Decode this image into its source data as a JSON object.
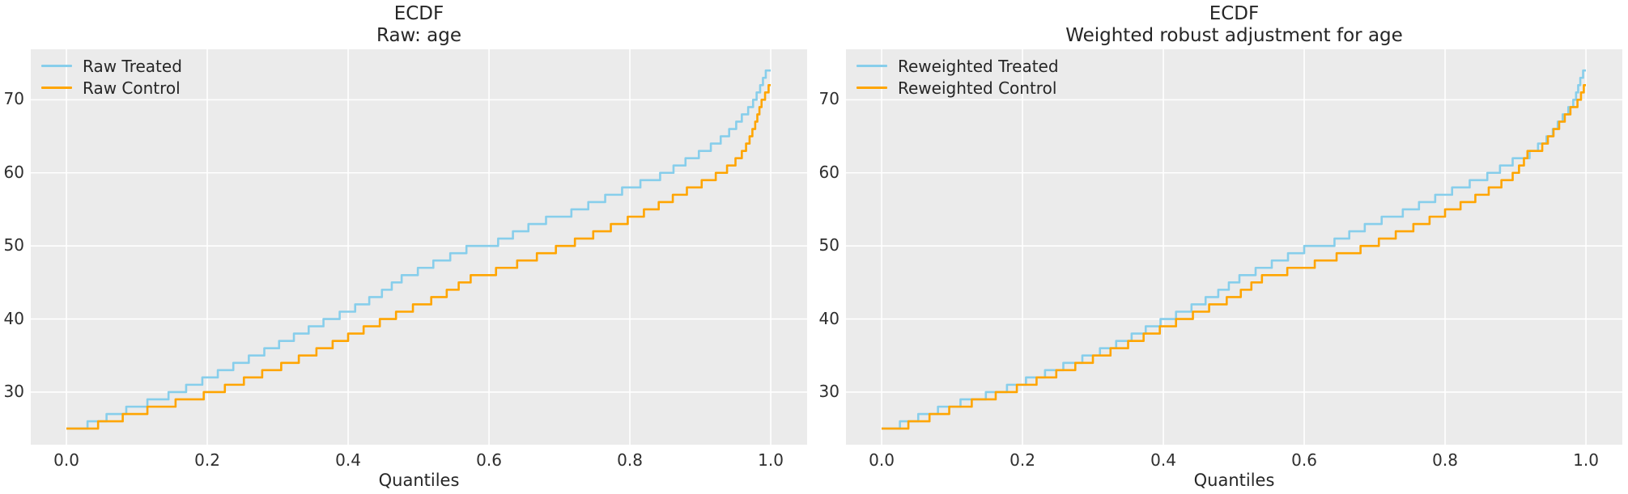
{
  "figure": {
    "background": "#ffffff",
    "plot_background": "#ebebeb",
    "grid_color": "#ffffff",
    "text_color": "#262626"
  },
  "chart_data": [
    {
      "type": "line",
      "subtype": "ecdf-step",
      "title_lines": [
        "ECDF",
        "Raw: age"
      ],
      "xlabel": "Quantiles",
      "legend_position": "upper-left",
      "axes": {
        "xlim": [
          -0.0506,
          1.0517
        ],
        "ylim": [
          22.8,
          76.9
        ],
        "x_tick_values": [
          0.0,
          0.2,
          0.4,
          0.6,
          0.8,
          1.0
        ],
        "x_tick_labels": [
          "0.0",
          "0.2",
          "0.4",
          "0.6",
          "0.8",
          "1.0"
        ],
        "y_tick_values": [
          30,
          40,
          50,
          60,
          70
        ],
        "y_tick_labels": [
          "30",
          "40",
          "50",
          "60",
          "70"
        ],
        "grid": true
      },
      "series": [
        {
          "name": "Raw Treated",
          "color": "#87CEEB",
          "start": [
            0.0,
            25
          ],
          "end_q": 1.0,
          "steps": [
            [
              0.03,
              26
            ],
            [
              0.057,
              27
            ],
            [
              0.085,
              28
            ],
            [
              0.115,
              29
            ],
            [
              0.145,
              30
            ],
            [
              0.17,
              31
            ],
            [
              0.193,
              32
            ],
            [
              0.215,
              33
            ],
            [
              0.237,
              34
            ],
            [
              0.259,
              35
            ],
            [
              0.281,
              36
            ],
            [
              0.302,
              37
            ],
            [
              0.323,
              38
            ],
            [
              0.344,
              39
            ],
            [
              0.365,
              40
            ],
            [
              0.388,
              41
            ],
            [
              0.41,
              42
            ],
            [
              0.43,
              43
            ],
            [
              0.448,
              44
            ],
            [
              0.462,
              45
            ],
            [
              0.476,
              46
            ],
            [
              0.499,
              47
            ],
            [
              0.521,
              48
            ],
            [
              0.545,
              49
            ],
            [
              0.568,
              50
            ],
            [
              0.613,
              51
            ],
            [
              0.634,
              52
            ],
            [
              0.656,
              53
            ],
            [
              0.681,
              54
            ],
            [
              0.717,
              55
            ],
            [
              0.741,
              56
            ],
            [
              0.765,
              57
            ],
            [
              0.789,
              58
            ],
            [
              0.815,
              59
            ],
            [
              0.843,
              60
            ],
            [
              0.862,
              61
            ],
            [
              0.879,
              62
            ],
            [
              0.898,
              63
            ],
            [
              0.915,
              64
            ],
            [
              0.929,
              65
            ],
            [
              0.941,
              66
            ],
            [
              0.951,
              67
            ],
            [
              0.959,
              68
            ],
            [
              0.968,
              69
            ],
            [
              0.975,
              70
            ],
            [
              0.98,
              71
            ],
            [
              0.985,
              72
            ],
            [
              0.989,
              73
            ],
            [
              0.993,
              74
            ]
          ]
        },
        {
          "name": "Raw Control",
          "color": "#FFA500",
          "start": [
            0.0,
            25
          ],
          "end_q": 1.0,
          "steps": [
            [
              0.045,
              26
            ],
            [
              0.08,
              27
            ],
            [
              0.115,
              28
            ],
            [
              0.155,
              29
            ],
            [
              0.195,
              30
            ],
            [
              0.225,
              31
            ],
            [
              0.252,
              32
            ],
            [
              0.278,
              33
            ],
            [
              0.305,
              34
            ],
            [
              0.33,
              35
            ],
            [
              0.355,
              36
            ],
            [
              0.378,
              37
            ],
            [
              0.4,
              38
            ],
            [
              0.422,
              39
            ],
            [
              0.445,
              40
            ],
            [
              0.468,
              41
            ],
            [
              0.492,
              42
            ],
            [
              0.518,
              43
            ],
            [
              0.54,
              44
            ],
            [
              0.557,
              45
            ],
            [
              0.574,
              46
            ],
            [
              0.61,
              47
            ],
            [
              0.64,
              48
            ],
            [
              0.668,
              49
            ],
            [
              0.695,
              50
            ],
            [
              0.722,
              51
            ],
            [
              0.748,
              52
            ],
            [
              0.773,
              53
            ],
            [
              0.797,
              54
            ],
            [
              0.82,
              55
            ],
            [
              0.841,
              56
            ],
            [
              0.861,
              57
            ],
            [
              0.881,
              58
            ],
            [
              0.902,
              59
            ],
            [
              0.922,
              60
            ],
            [
              0.938,
              61
            ],
            [
              0.95,
              62
            ],
            [
              0.959,
              63
            ],
            [
              0.965,
              64
            ],
            [
              0.97,
              65
            ],
            [
              0.974,
              66
            ],
            [
              0.978,
              67
            ],
            [
              0.981,
              68
            ],
            [
              0.984,
              69
            ],
            [
              0.987,
              70
            ],
            [
              0.992,
              71
            ],
            [
              0.997,
              72
            ]
          ]
        }
      ]
    },
    {
      "type": "line",
      "subtype": "ecdf-step",
      "title_lines": [
        "ECDF",
        "Weighted robust adjustment for age"
      ],
      "xlabel": "Quantiles",
      "legend_position": "upper-left",
      "axes": {
        "xlim": [
          -0.0506,
          1.0517
        ],
        "ylim": [
          22.8,
          76.9
        ],
        "x_tick_values": [
          0.0,
          0.2,
          0.4,
          0.6,
          0.8,
          1.0
        ],
        "x_tick_labels": [
          "0.0",
          "0.2",
          "0.4",
          "0.6",
          "0.8",
          "1.0"
        ],
        "y_tick_values": [
          30,
          40,
          50,
          60,
          70
        ],
        "y_tick_labels": [
          "30",
          "40",
          "50",
          "60",
          "70"
        ],
        "grid": true
      },
      "series": [
        {
          "name": "Reweighted Treated",
          "color": "#87CEEB",
          "start": [
            0.0,
            25
          ],
          "end_q": 1.0,
          "steps": [
            [
              0.026,
              26
            ],
            [
              0.052,
              27
            ],
            [
              0.08,
              28
            ],
            [
              0.112,
              29
            ],
            [
              0.148,
              30
            ],
            [
              0.178,
              31
            ],
            [
              0.205,
              32
            ],
            [
              0.232,
              33
            ],
            [
              0.258,
              34
            ],
            [
              0.285,
              35
            ],
            [
              0.31,
              36
            ],
            [
              0.333,
              37
            ],
            [
              0.355,
              38
            ],
            [
              0.375,
              39
            ],
            [
              0.396,
              40
            ],
            [
              0.418,
              41
            ],
            [
              0.44,
              42
            ],
            [
              0.46,
              43
            ],
            [
              0.478,
              44
            ],
            [
              0.493,
              45
            ],
            [
              0.508,
              46
            ],
            [
              0.531,
              47
            ],
            [
              0.554,
              48
            ],
            [
              0.577,
              49
            ],
            [
              0.6,
              50
            ],
            [
              0.643,
              51
            ],
            [
              0.664,
              52
            ],
            [
              0.686,
              53
            ],
            [
              0.71,
              54
            ],
            [
              0.74,
              55
            ],
            [
              0.763,
              56
            ],
            [
              0.786,
              57
            ],
            [
              0.81,
              58
            ],
            [
              0.835,
              59
            ],
            [
              0.86,
              60
            ],
            [
              0.878,
              61
            ],
            [
              0.896,
              62
            ],
            [
              0.92,
              63
            ],
            [
              0.932,
              64
            ],
            [
              0.944,
              65
            ],
            [
              0.953,
              66
            ],
            [
              0.96,
              67
            ],
            [
              0.967,
              68
            ],
            [
              0.975,
              69
            ],
            [
              0.982,
              70
            ],
            [
              0.986,
              71
            ],
            [
              0.989,
              72
            ],
            [
              0.992,
              73
            ],
            [
              0.996,
              74
            ]
          ]
        },
        {
          "name": "Reweighted Control",
          "color": "#FFA500",
          "start": [
            0.0,
            25
          ],
          "end_q": 1.0,
          "steps": [
            [
              0.038,
              26
            ],
            [
              0.068,
              27
            ],
            [
              0.096,
              28
            ],
            [
              0.128,
              29
            ],
            [
              0.162,
              30
            ],
            [
              0.192,
              31
            ],
            [
              0.22,
              32
            ],
            [
              0.248,
              33
            ],
            [
              0.275,
              34
            ],
            [
              0.3,
              35
            ],
            [
              0.325,
              36
            ],
            [
              0.35,
              37
            ],
            [
              0.372,
              38
            ],
            [
              0.395,
              39
            ],
            [
              0.418,
              40
            ],
            [
              0.442,
              41
            ],
            [
              0.465,
              42
            ],
            [
              0.49,
              43
            ],
            [
              0.51,
              44
            ],
            [
              0.525,
              45
            ],
            [
              0.54,
              46
            ],
            [
              0.576,
              47
            ],
            [
              0.615,
              48
            ],
            [
              0.646,
              49
            ],
            [
              0.68,
              50
            ],
            [
              0.706,
              51
            ],
            [
              0.73,
              52
            ],
            [
              0.755,
              53
            ],
            [
              0.778,
              54
            ],
            [
              0.8,
              55
            ],
            [
              0.822,
              56
            ],
            [
              0.843,
              57
            ],
            [
              0.862,
              58
            ],
            [
              0.88,
              59
            ],
            [
              0.896,
              60
            ],
            [
              0.905,
              61
            ],
            [
              0.912,
              62
            ],
            [
              0.917,
              63
            ],
            [
              0.938,
              64
            ],
            [
              0.946,
              65
            ],
            [
              0.954,
              66
            ],
            [
              0.962,
              67
            ],
            [
              0.97,
              68
            ],
            [
              0.978,
              69
            ],
            [
              0.988,
              70
            ],
            [
              0.993,
              71
            ],
            [
              0.997,
              72
            ]
          ]
        }
      ]
    }
  ]
}
